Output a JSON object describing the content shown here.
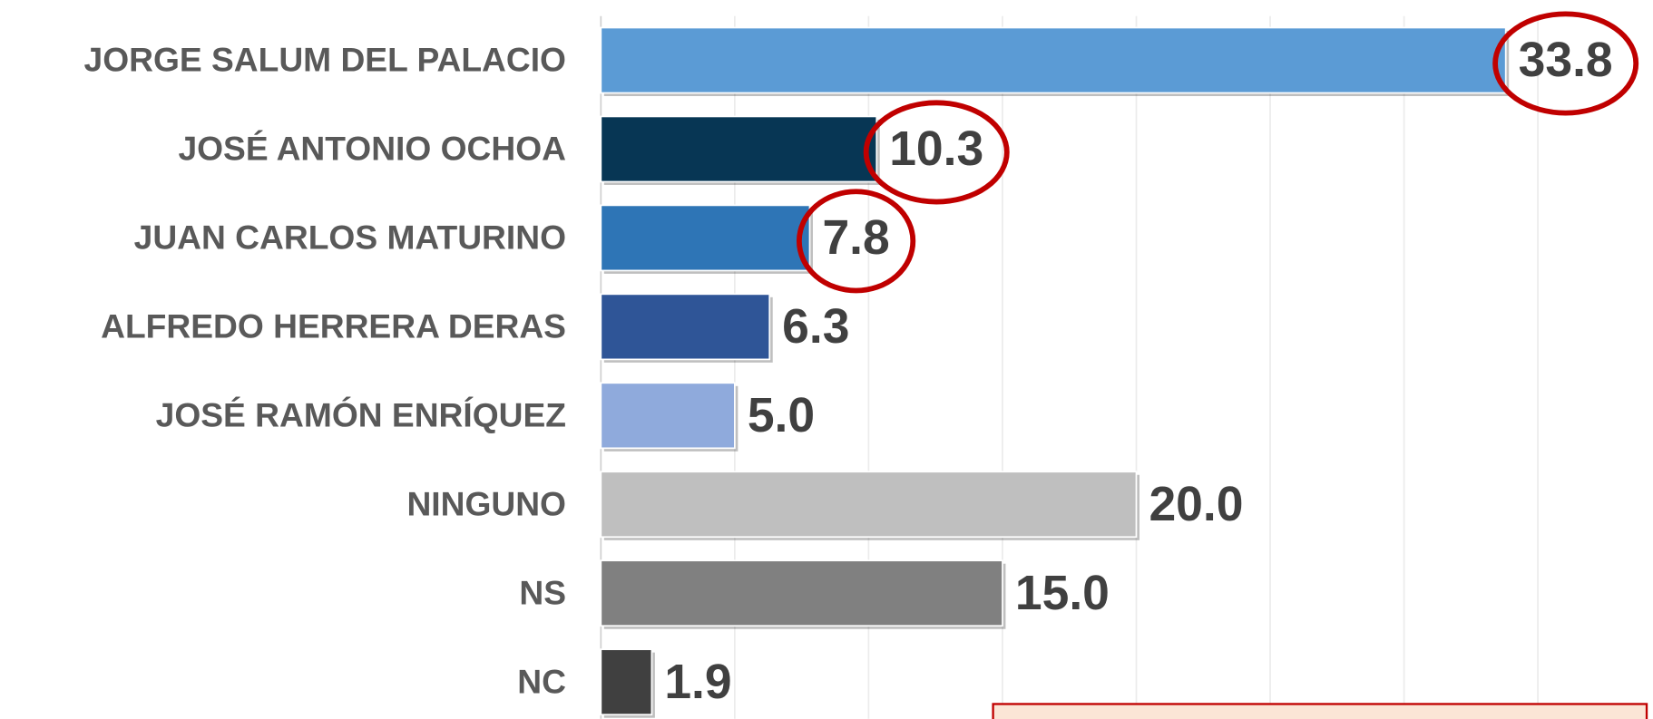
{
  "chart_data": {
    "type": "barh",
    "categories": [
      "JORGE SALUM DEL PALACIO",
      "JOSÉ ANTONIO OCHOA",
      "JUAN CARLOS MATURINO",
      "ALFREDO HERRERA DERAS",
      "JOSÉ RAMÓN ENRÍQUEZ",
      "NINGUNO",
      "NS",
      "NC"
    ],
    "values": [
      33.8,
      10.3,
      7.8,
      6.3,
      5.0,
      20.0,
      15.0,
      1.9
    ],
    "value_labels": [
      "33.8",
      "10.3",
      "7.8",
      "6.3",
      "5.0",
      "20.0",
      "15.0",
      "1.9"
    ],
    "colors": [
      "#5b9bd5",
      "#073654",
      "#2e75b6",
      "#2f5597",
      "#8faadc",
      "#bfbfbf",
      "#808080",
      "#404040"
    ],
    "xlim": [
      0,
      39.3
    ],
    "xticks": [
      0,
      5,
      10,
      15,
      20,
      25,
      30,
      35
    ],
    "grid": true,
    "highlighted": [
      0,
      1,
      2
    ],
    "highlight_color": "#c00000"
  }
}
